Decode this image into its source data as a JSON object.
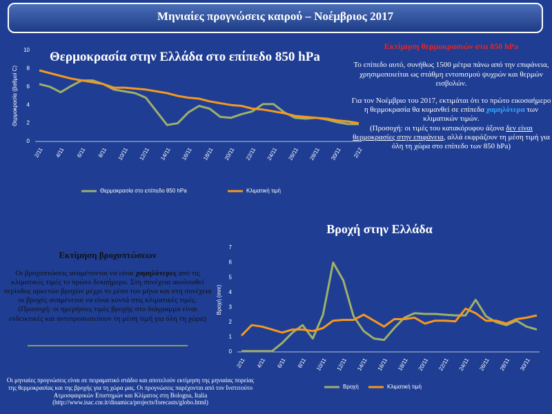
{
  "header": {
    "title": "Μηνιαίες προγνώσεις καιρού – Νοέμβριος 2017"
  },
  "chart_data": [
    {
      "type": "line",
      "title": "Θερμοκρασία στην Ελλάδα στο επίπεδο 850 hPa",
      "y_label": "Θερμοκρασία (βαθμοί C)",
      "categories": [
        "2/11",
        null,
        "4/11",
        null,
        "6/11",
        null,
        "8/11",
        null,
        "10/11",
        null,
        "12/11",
        null,
        "14/11",
        null,
        "16/11",
        null,
        "18/11",
        null,
        "20/11",
        null,
        "22/11",
        null,
        "24/11",
        null,
        "26/11",
        null,
        "28/11",
        null,
        "30/11",
        null,
        "2/12"
      ],
      "series": [
        {
          "name": "Θερμοκρασία στο επίπεδο 850 hPa",
          "color": "#9fb06a",
          "values": [
            6.3,
            6.0,
            5.4,
            6.1,
            6.7,
            6.7,
            6.3,
            5.7,
            5.5,
            5.3,
            4.8,
            3.3,
            1.8,
            2.0,
            3.2,
            3.9,
            3.6,
            2.7,
            2.6,
            3.0,
            3.3,
            4.1,
            4.1,
            3.2,
            2.6,
            2.5,
            2.6,
            2.4,
            2.1,
            1.9,
            1.9
          ]
        },
        {
          "name": "Κλιματική τιμή",
          "color": "#f7981d",
          "values": [
            7.8,
            7.5,
            7.2,
            6.9,
            6.7,
            6.5,
            6.3,
            5.9,
            5.9,
            5.8,
            5.7,
            5.5,
            5.3,
            5.0,
            4.8,
            4.7,
            4.4,
            4.2,
            4.0,
            3.9,
            3.6,
            3.5,
            3.3,
            3.1,
            2.8,
            2.7,
            2.6,
            2.5,
            2.3,
            2.2,
            2.0
          ]
        }
      ],
      "ylim": [
        0,
        10
      ],
      "yticks": [
        0,
        2,
        4,
        6,
        8,
        10
      ],
      "grid": false,
      "legend": "bottom"
    },
    {
      "type": "line",
      "title": "Βροχή στην Ελλάδα",
      "y_label": "Βροχή (mm)",
      "categories": [
        "2/11",
        null,
        "4/11",
        null,
        "6/11",
        null,
        "8/11",
        null,
        "10/11",
        null,
        "12/11",
        null,
        "14/11",
        null,
        "16/11",
        null,
        "18/11",
        null,
        "20/11",
        null,
        "22/11",
        null,
        "24/11",
        null,
        "26/11",
        null,
        "28/11",
        null,
        "30/11",
        null
      ],
      "series": [
        {
          "name": "Βροχή",
          "color": "#9fb06a",
          "values": [
            0.05,
            0.05,
            0.05,
            0.05,
            0.6,
            1.3,
            1.8,
            0.9,
            2.5,
            6.0,
            4.8,
            2.4,
            1.4,
            0.9,
            0.8,
            1.6,
            2.3,
            2.6,
            2.55,
            2.55,
            2.5,
            2.45,
            2.45,
            3.5,
            2.4,
            2.0,
            1.8,
            2.1,
            1.7,
            1.5
          ]
        },
        {
          "name": "Κλιματική τιμή",
          "color": "#f7981d",
          "values": [
            1.1,
            1.8,
            1.7,
            1.5,
            1.3,
            1.5,
            1.5,
            1.4,
            1.6,
            2.1,
            2.15,
            2.15,
            2.5,
            2.1,
            1.7,
            2.2,
            2.2,
            2.3,
            1.9,
            2.1,
            2.1,
            2.05,
            2.9,
            2.6,
            2.1,
            2.1,
            1.9,
            2.2,
            2.3,
            2.45
          ]
        }
      ],
      "ylim": [
        0,
        7
      ],
      "yticks": [
        0,
        1,
        2,
        3,
        4,
        5,
        6,
        7
      ],
      "grid": false,
      "legend": "bottom"
    }
  ],
  "temperature_note": {
    "title": "Εκτίμηση θερμοκρασιών στα 850 hPa",
    "p1": "Το επίπεδο αυτό, συνήθως 1500 μέτρα πάνω από την επιφάνεια, χρησιμοποιείται ως στάθμη  εντοπισμού ψυχρών και θερμών εισβολών.",
    "p2": [
      "Για τον Νοέμβριο του 2017, εκτιμάται ότι το πρώτο εικοσαήμερο η θερμοκρασία θα κυμανθεί σε επίπεδα ",
      "χαμηλότερα",
      " των κλιματικών τιμών."
    ],
    "p3": [
      "(Προσοχή: οι τιμές του  κατακόρυφου άξονα ",
      "δεν είναι θερμοκρασίες στην επιφάνεια",
      ", αλλά εκφράζουν τη μέση τιμή για όλη τη χώρα στο επίπεδο των 850 hPa)"
    ]
  },
  "rain_note": {
    "title": "Εκτίμηση βροχοπτώσεων",
    "p1": [
      "Οι βροχοπτώσεις αναμένονται να είναι ",
      "χαμηλότερες",
      " από τις κλιματικές τιμές το πρώτο δεκαήμερο. Στη συνέχεια ακολουθεί περίοδος αρκετών βροχών μέχρι το μέσο του μήνα  και στη συνέχεια οι βροχές αναμένεται να είναι κοντά στις κλιματικές τιμές."
    ],
    "p2": "(Προσοχή: οι ημερήσιες τιμές βροχής στο διάγραμμα είναι ενδεικτικές και  αντιπροσωπεύουν τη μέση τιμή για όλη τη χώρα)"
  },
  "footnote": "Οι μηνιαίες προγνώσεις  είναι σε πειραματικό στάδιο και αποτελούν  εκτίμηση της μηνιαίας πορείας της θερμοκρασίας  και της βροχής για τη χώρα μας. Οι προγνώσεις παρέχονται από τον Ινστιτούτο Ατμοσφαιρικών  Επιστημών και Κλίματος  στη Bologna, Italia (http://www.isac.cnr.it/dinamica/projects/forecasts/globo.html)"
}
